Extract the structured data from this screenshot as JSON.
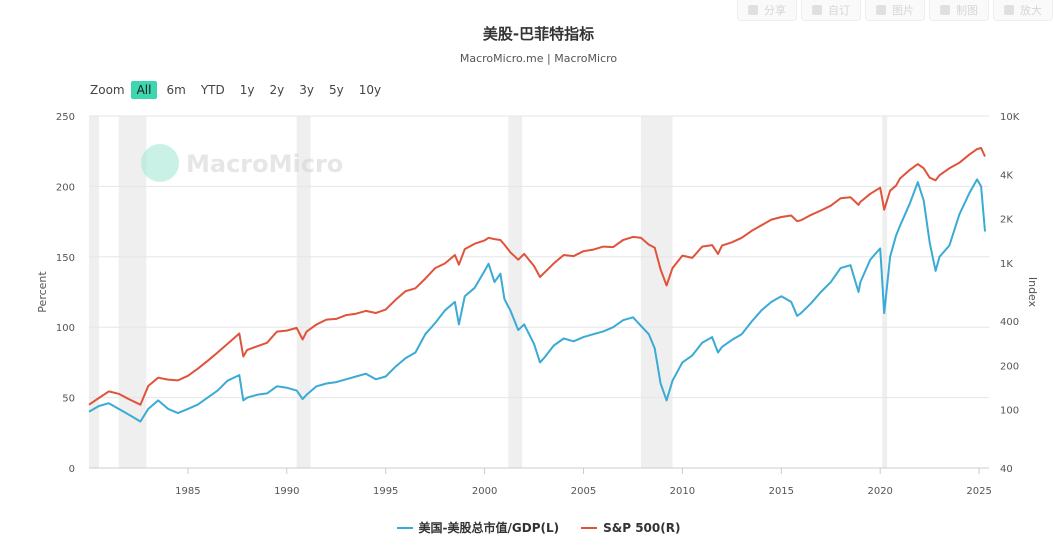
{
  "toolbar": {
    "share": "分享",
    "subscribe": "自订",
    "image": "图片",
    "edit": "制图",
    "enlarge": "放大"
  },
  "watermark": "MacroMicro",
  "zoom": {
    "label": "Zoom",
    "options": [
      "All",
      "6m",
      "YTD",
      "1y",
      "2y",
      "3y",
      "5y",
      "10y"
    ],
    "active": "All"
  },
  "colors": {
    "buffett": "#3aaad6",
    "sp500": "#e0533b",
    "recession": "#efefef",
    "accent": "#3dd6ae"
  },
  "chart_data": {
    "type": "line",
    "title": "美股-巴菲特指标",
    "subtitle": "MacroMicro.me | MacroMicro",
    "ylabel_left": "Percent",
    "ylabel_right": "Index",
    "xlim": [
      1980.0,
      2025.5
    ],
    "ylim_left": [
      0,
      250
    ],
    "ylim_right_log": [
      40,
      10000
    ],
    "x_ticks": [
      1985,
      1990,
      1995,
      2000,
      2005,
      2010,
      2015,
      2020,
      2025
    ],
    "y_ticks_left": [
      0,
      50,
      100,
      150,
      200,
      250
    ],
    "y_ticks_right": [
      {
        "v": 40,
        "label": "40"
      },
      {
        "v": 100,
        "label": "100"
      },
      {
        "v": 200,
        "label": "200"
      },
      {
        "v": 400,
        "label": "400"
      },
      {
        "v": 1000,
        "label": "1K"
      },
      {
        "v": 2000,
        "label": "2K"
      },
      {
        "v": 4000,
        "label": "4K"
      },
      {
        "v": 10000,
        "label": "10K"
      }
    ],
    "recessions": [
      [
        1980.0,
        1980.5
      ],
      [
        1981.5,
        1982.9
      ],
      [
        1990.5,
        1991.2
      ],
      [
        2001.2,
        2001.9
      ],
      [
        2007.9,
        2009.5
      ],
      [
        2020.1,
        2020.35
      ]
    ],
    "series": [
      {
        "name": "美国-美股总市值/GDP(L)",
        "axis": "left",
        "points": [
          [
            1980.0,
            40
          ],
          [
            1980.5,
            44
          ],
          [
            1981.0,
            46
          ],
          [
            1981.5,
            42
          ],
          [
            1982.0,
            38
          ],
          [
            1982.6,
            33
          ],
          [
            1983.0,
            42
          ],
          [
            1983.5,
            48
          ],
          [
            1984.0,
            42
          ],
          [
            1984.5,
            39
          ],
          [
            1985.0,
            42
          ],
          [
            1985.5,
            45
          ],
          [
            1986.0,
            50
          ],
          [
            1986.5,
            55
          ],
          [
            1987.0,
            62
          ],
          [
            1987.6,
            66
          ],
          [
            1987.8,
            48
          ],
          [
            1988.0,
            50
          ],
          [
            1988.5,
            52
          ],
          [
            1989.0,
            53
          ],
          [
            1989.5,
            58
          ],
          [
            1990.0,
            57
          ],
          [
            1990.5,
            55
          ],
          [
            1990.8,
            49
          ],
          [
            1991.0,
            52
          ],
          [
            1991.5,
            58
          ],
          [
            1992.0,
            60
          ],
          [
            1992.5,
            61
          ],
          [
            1993.0,
            63
          ],
          [
            1993.5,
            65
          ],
          [
            1994.0,
            67
          ],
          [
            1994.5,
            63
          ],
          [
            1995.0,
            65
          ],
          [
            1995.5,
            72
          ],
          [
            1996.0,
            78
          ],
          [
            1996.5,
            82
          ],
          [
            1997.0,
            95
          ],
          [
            1997.5,
            103
          ],
          [
            1998.0,
            112
          ],
          [
            1998.5,
            118
          ],
          [
            1998.7,
            102
          ],
          [
            1999.0,
            122
          ],
          [
            1999.5,
            128
          ],
          [
            2000.0,
            140
          ],
          [
            2000.2,
            145
          ],
          [
            2000.5,
            132
          ],
          [
            2000.8,
            138
          ],
          [
            2001.0,
            120
          ],
          [
            2001.3,
            112
          ],
          [
            2001.7,
            98
          ],
          [
            2002.0,
            102
          ],
          [
            2002.5,
            88
          ],
          [
            2002.8,
            75
          ],
          [
            2003.0,
            78
          ],
          [
            2003.5,
            87
          ],
          [
            2004.0,
            92
          ],
          [
            2004.5,
            90
          ],
          [
            2005.0,
            93
          ],
          [
            2005.5,
            95
          ],
          [
            2006.0,
            97
          ],
          [
            2006.5,
            100
          ],
          [
            2007.0,
            105
          ],
          [
            2007.5,
            107
          ],
          [
            2007.9,
            101
          ],
          [
            2008.3,
            95
          ],
          [
            2008.6,
            85
          ],
          [
            2008.9,
            60
          ],
          [
            2009.2,
            48
          ],
          [
            2009.5,
            62
          ],
          [
            2010.0,
            75
          ],
          [
            2010.5,
            80
          ],
          [
            2011.0,
            89
          ],
          [
            2011.5,
            93
          ],
          [
            2011.8,
            82
          ],
          [
            2012.0,
            86
          ],
          [
            2012.5,
            91
          ],
          [
            2013.0,
            95
          ],
          [
            2013.5,
            104
          ],
          [
            2014.0,
            112
          ],
          [
            2014.5,
            118
          ],
          [
            2015.0,
            122
          ],
          [
            2015.5,
            118
          ],
          [
            2015.8,
            108
          ],
          [
            2016.0,
            110
          ],
          [
            2016.5,
            117
          ],
          [
            2017.0,
            125
          ],
          [
            2017.5,
            132
          ],
          [
            2018.0,
            142
          ],
          [
            2018.5,
            144
          ],
          [
            2018.9,
            125
          ],
          [
            2019.0,
            132
          ],
          [
            2019.5,
            148
          ],
          [
            2020.0,
            156
          ],
          [
            2020.2,
            110
          ],
          [
            2020.5,
            150
          ],
          [
            2020.8,
            165
          ],
          [
            2021.0,
            172
          ],
          [
            2021.5,
            188
          ],
          [
            2021.9,
            203
          ],
          [
            2022.2,
            190
          ],
          [
            2022.5,
            160
          ],
          [
            2022.8,
            140
          ],
          [
            2023.0,
            150
          ],
          [
            2023.5,
            158
          ],
          [
            2024.0,
            180
          ],
          [
            2024.5,
            195
          ],
          [
            2024.9,
            205
          ],
          [
            2025.1,
            200
          ],
          [
            2025.3,
            168
          ]
        ]
      },
      {
        "name": "S&P 500(R)",
        "axis": "right",
        "points": [
          [
            1980.0,
            108
          ],
          [
            1980.5,
            120
          ],
          [
            1981.0,
            133
          ],
          [
            1981.5,
            128
          ],
          [
            1982.0,
            118
          ],
          [
            1982.6,
            108
          ],
          [
            1983.0,
            145
          ],
          [
            1983.5,
            165
          ],
          [
            1984.0,
            160
          ],
          [
            1984.5,
            158
          ],
          [
            1985.0,
            170
          ],
          [
            1985.5,
            190
          ],
          [
            1986.0,
            215
          ],
          [
            1986.5,
            245
          ],
          [
            1987.0,
            280
          ],
          [
            1987.6,
            330
          ],
          [
            1987.8,
            230
          ],
          [
            1988.0,
            255
          ],
          [
            1988.5,
            270
          ],
          [
            1989.0,
            285
          ],
          [
            1989.5,
            340
          ],
          [
            1990.0,
            345
          ],
          [
            1990.5,
            360
          ],
          [
            1990.8,
            300
          ],
          [
            1991.0,
            340
          ],
          [
            1991.5,
            380
          ],
          [
            1992.0,
            410
          ],
          [
            1992.5,
            415
          ],
          [
            1993.0,
            440
          ],
          [
            1993.5,
            450
          ],
          [
            1994.0,
            470
          ],
          [
            1994.5,
            455
          ],
          [
            1995.0,
            480
          ],
          [
            1995.5,
            560
          ],
          [
            1996.0,
            640
          ],
          [
            1996.5,
            670
          ],
          [
            1997.0,
            780
          ],
          [
            1997.5,
            920
          ],
          [
            1998.0,
            990
          ],
          [
            1998.5,
            1130
          ],
          [
            1998.7,
            970
          ],
          [
            1999.0,
            1240
          ],
          [
            1999.5,
            1350
          ],
          [
            2000.0,
            1420
          ],
          [
            2000.2,
            1480
          ],
          [
            2000.5,
            1450
          ],
          [
            2000.8,
            1430
          ],
          [
            2001.0,
            1330
          ],
          [
            2001.3,
            1180
          ],
          [
            2001.7,
            1050
          ],
          [
            2002.0,
            1150
          ],
          [
            2002.5,
            950
          ],
          [
            2002.8,
            800
          ],
          [
            2003.0,
            850
          ],
          [
            2003.5,
            990
          ],
          [
            2004.0,
            1130
          ],
          [
            2004.5,
            1110
          ],
          [
            2005.0,
            1200
          ],
          [
            2005.5,
            1230
          ],
          [
            2006.0,
            1290
          ],
          [
            2006.5,
            1280
          ],
          [
            2007.0,
            1430
          ],
          [
            2007.5,
            1500
          ],
          [
            2007.9,
            1480
          ],
          [
            2008.3,
            1330
          ],
          [
            2008.6,
            1270
          ],
          [
            2008.9,
            900
          ],
          [
            2009.2,
            700
          ],
          [
            2009.5,
            920
          ],
          [
            2010.0,
            1120
          ],
          [
            2010.5,
            1080
          ],
          [
            2011.0,
            1290
          ],
          [
            2011.5,
            1320
          ],
          [
            2011.8,
            1150
          ],
          [
            2012.0,
            1310
          ],
          [
            2012.5,
            1380
          ],
          [
            2013.0,
            1480
          ],
          [
            2013.5,
            1650
          ],
          [
            2014.0,
            1800
          ],
          [
            2014.5,
            1970
          ],
          [
            2015.0,
            2050
          ],
          [
            2015.5,
            2100
          ],
          [
            2015.8,
            1920
          ],
          [
            2016.0,
            1950
          ],
          [
            2016.5,
            2120
          ],
          [
            2017.0,
            2270
          ],
          [
            2017.5,
            2450
          ],
          [
            2018.0,
            2750
          ],
          [
            2018.5,
            2800
          ],
          [
            2018.9,
            2480
          ],
          [
            2019.0,
            2600
          ],
          [
            2019.5,
            2950
          ],
          [
            2020.0,
            3250
          ],
          [
            2020.2,
            2300
          ],
          [
            2020.5,
            3100
          ],
          [
            2020.8,
            3350
          ],
          [
            2021.0,
            3750
          ],
          [
            2021.5,
            4300
          ],
          [
            2021.9,
            4700
          ],
          [
            2022.2,
            4400
          ],
          [
            2022.5,
            3800
          ],
          [
            2022.8,
            3650
          ],
          [
            2023.0,
            3950
          ],
          [
            2023.5,
            4400
          ],
          [
            2024.0,
            4800
          ],
          [
            2024.5,
            5450
          ],
          [
            2024.9,
            5950
          ],
          [
            2025.1,
            6050
          ],
          [
            2025.3,
            5300
          ]
        ]
      }
    ]
  }
}
